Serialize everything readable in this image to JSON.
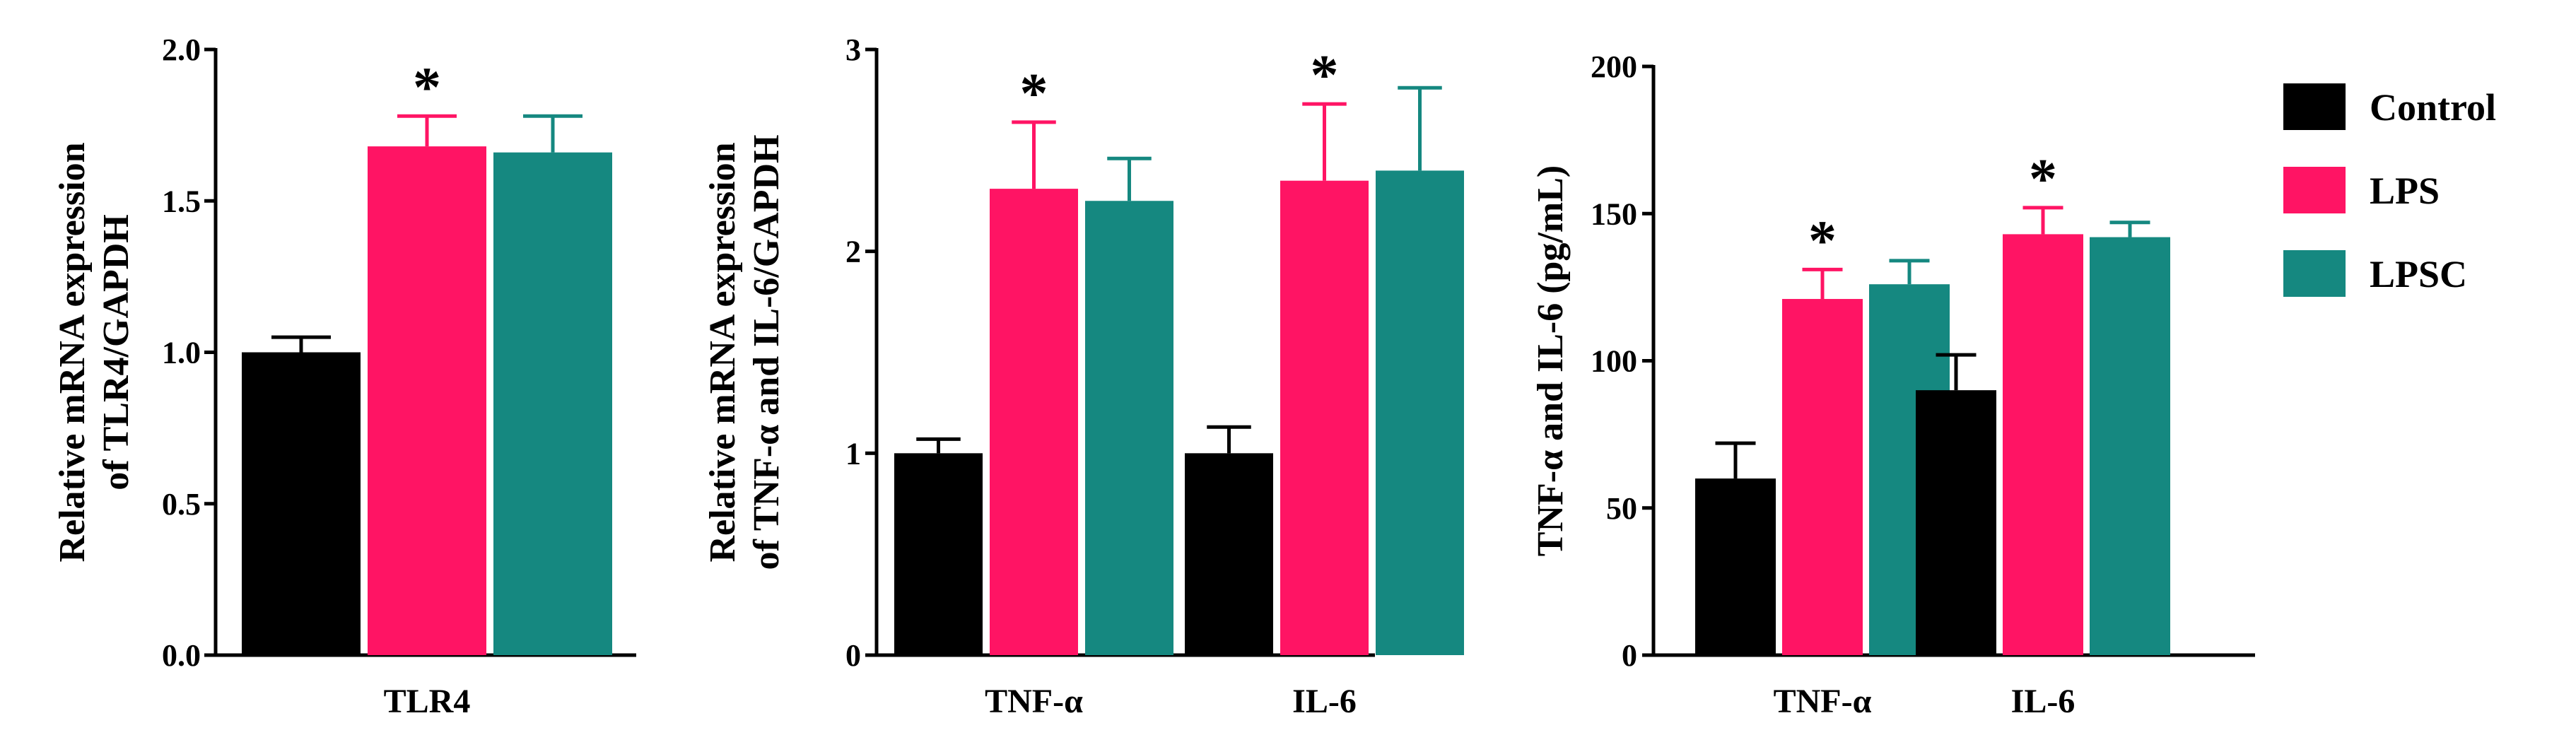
{
  "colors": {
    "Control": "#000000",
    "LPS": "#FF1464",
    "LPSC": "#158880"
  },
  "legend": {
    "items": [
      "Control",
      "LPS",
      "LPSC"
    ]
  },
  "chart_data": [
    {
      "type": "bar",
      "ylabel_lines": [
        "Relative mRNA expression",
        "of TLR4/GAPDH"
      ],
      "ylim": [
        0,
        2.0
      ],
      "ytick_labels": [
        "0.0",
        "0.5",
        "1.0",
        "1.5",
        "2.0"
      ],
      "categories": [
        "TLR4"
      ],
      "series": [
        {
          "name": "Control",
          "values": [
            1.0
          ],
          "errors": [
            0.05
          ]
        },
        {
          "name": "LPS",
          "values": [
            1.68
          ],
          "errors": [
            0.1
          ]
        },
        {
          "name": "LPSC",
          "values": [
            1.66
          ],
          "errors": [
            0.12
          ]
        }
      ],
      "annotations": [
        {
          "category": "TLR4",
          "series": "LPS",
          "text": "*"
        }
      ]
    },
    {
      "type": "bar",
      "ylabel_lines": [
        "Relative mRNA expression",
        "of TNF-α and IL-6/GAPDH"
      ],
      "ylim": [
        0,
        3
      ],
      "ytick_labels": [
        "0",
        "1",
        "2",
        "3"
      ],
      "categories": [
        "TNF-α",
        "IL-6"
      ],
      "series": [
        {
          "name": "Control",
          "values": [
            1.0,
            1.0
          ],
          "errors": [
            0.07,
            0.13
          ]
        },
        {
          "name": "LPS",
          "values": [
            2.31,
            2.35
          ],
          "errors": [
            0.33,
            0.38
          ]
        },
        {
          "name": "LPSC",
          "values": [
            2.25,
            2.4
          ],
          "errors": [
            0.21,
            0.41
          ]
        }
      ],
      "annotations": [
        {
          "category": "TNF-α",
          "series": "LPS",
          "text": "*"
        },
        {
          "category": "IL-6",
          "series": "LPS",
          "text": "*"
        }
      ]
    },
    {
      "type": "bar",
      "ylabel_lines": [
        "TNF-α and IL-6 (pg/mL)"
      ],
      "ylim": [
        0,
        200
      ],
      "ytick_labels": [
        "0",
        "50",
        "100",
        "150",
        "200"
      ],
      "categories": [
        "TNF-α",
        "IL-6"
      ],
      "series": [
        {
          "name": "Control",
          "values": [
            60,
            90
          ],
          "errors": [
            12,
            12
          ]
        },
        {
          "name": "LPS",
          "values": [
            121,
            143
          ],
          "errors": [
            10,
            9
          ]
        },
        {
          "name": "LPSC",
          "values": [
            126,
            142
          ],
          "errors": [
            8,
            5
          ]
        }
      ],
      "annotations": [
        {
          "category": "TNF-α",
          "series": "LPS",
          "text": "*"
        },
        {
          "category": "IL-6",
          "series": "LPS",
          "text": "*"
        }
      ]
    }
  ]
}
